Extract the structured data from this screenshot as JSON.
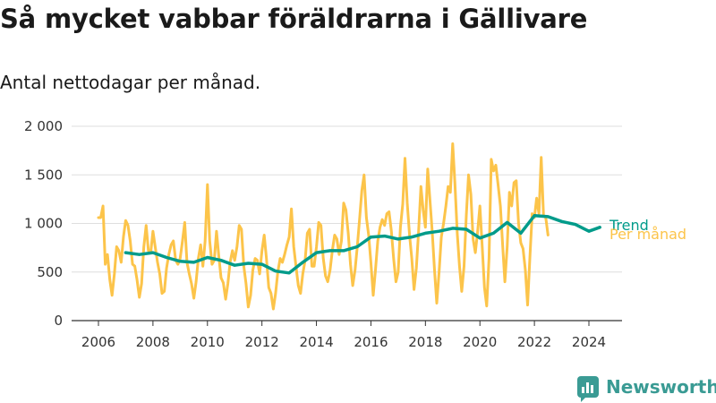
{
  "title": "Så mycket vabbar föräldrarna i Gällivare",
  "subtitle": "Antal nettodagar per månad.",
  "brand": {
    "name": "Newsworthy",
    "color": "#3a9b94",
    "icon": "bar-chart-logo-icon"
  },
  "chart_data": {
    "type": "line",
    "xlim": [
      2006,
      2024.5
    ],
    "ylim": [
      0,
      2000
    ],
    "y_ticks": [
      0,
      500,
      1000,
      1500,
      2000
    ],
    "y_tick_labels": [
      "0",
      "500",
      "1 000",
      "1 500",
      "2 000"
    ],
    "x_ticks": [
      2006,
      2008,
      2010,
      2012,
      2014,
      2016,
      2018,
      2020,
      2022,
      2024
    ],
    "x_tick_labels": [
      "2006",
      "2008",
      "2010",
      "2012",
      "2014",
      "2016",
      "2018",
      "2020",
      "2022",
      "2024"
    ],
    "grid": "horizontal",
    "series": [
      {
        "name": "Per månad",
        "color": "#fcc44a",
        "start": 2006.0,
        "step_months": 1,
        "values": [
          1060,
          1060,
          1180,
          580,
          680,
          420,
          260,
          480,
          760,
          720,
          600,
          860,
          1030,
          980,
          820,
          580,
          560,
          420,
          240,
          380,
          760,
          980,
          720,
          700,
          920,
          760,
          600,
          480,
          280,
          300,
          540,
          680,
          780,
          820,
          620,
          580,
          640,
          820,
          1010,
          600,
          480,
          380,
          230,
          400,
          640,
          780,
          560,
          820,
          1400,
          820,
          580,
          620,
          920,
          660,
          440,
          390,
          220,
          380,
          600,
          720,
          620,
          760,
          980,
          940,
          560,
          380,
          140,
          260,
          520,
          640,
          620,
          480,
          720,
          880,
          640,
          340,
          280,
          120,
          280,
          500,
          640,
          600,
          680,
          780,
          860,
          1150,
          760,
          560,
          360,
          280,
          480,
          620,
          900,
          940,
          560,
          560,
          760,
          1010,
          980,
          640,
          460,
          400,
          520,
          720,
          880,
          840,
          680,
          820,
          1210,
          1140,
          900,
          580,
          360,
          520,
          760,
          1050,
          1340,
          1500,
          1060,
          880,
          600,
          260,
          520,
          820,
          960,
          1040,
          980,
          1100,
          1120,
          920,
          640,
          400,
          500,
          960,
          1200,
          1670,
          1210,
          880,
          640,
          320,
          540,
          920,
          1380,
          1140,
          960,
          1560,
          1240,
          920,
          520,
          180,
          500,
          860,
          1000,
          1180,
          1380,
          1320,
          1820,
          1410,
          900,
          560,
          300,
          560,
          1080,
          1500,
          1300,
          840,
          700,
          920,
          1180,
          760,
          340,
          150,
          640,
          1660,
          1540,
          1600,
          1400,
          1180,
          780,
          400,
          760,
          1320,
          1180,
          1420,
          1440,
          1000,
          800,
          740,
          520,
          160,
          640,
          1100,
          1060,
          1260,
          1100,
          1680,
          1080,
          1060,
          880
        ]
      },
      {
        "name": "Trend",
        "color": "#009b8a",
        "x": [
          2007,
          2007.5,
          2008,
          2008.5,
          2009,
          2009.5,
          2010,
          2010.5,
          2011,
          2011.5,
          2012,
          2012.5,
          2013,
          2013.5,
          2014,
          2014.5,
          2015,
          2015.5,
          2016,
          2016.5,
          2017,
          2017.5,
          2018,
          2018.5,
          2019,
          2019.5,
          2020,
          2020.5,
          2021,
          2021.5,
          2022,
          2022.5,
          2023,
          2023.5,
          2024,
          2024.4
        ],
        "values": [
          700,
          680,
          700,
          650,
          610,
          600,
          650,
          620,
          570,
          590,
          580,
          510,
          490,
          600,
          700,
          720,
          720,
          760,
          860,
          870,
          840,
          860,
          900,
          920,
          950,
          940,
          850,
          900,
          1010,
          900,
          1080,
          1070,
          1020,
          990,
          920,
          960
        ]
      }
    ]
  }
}
